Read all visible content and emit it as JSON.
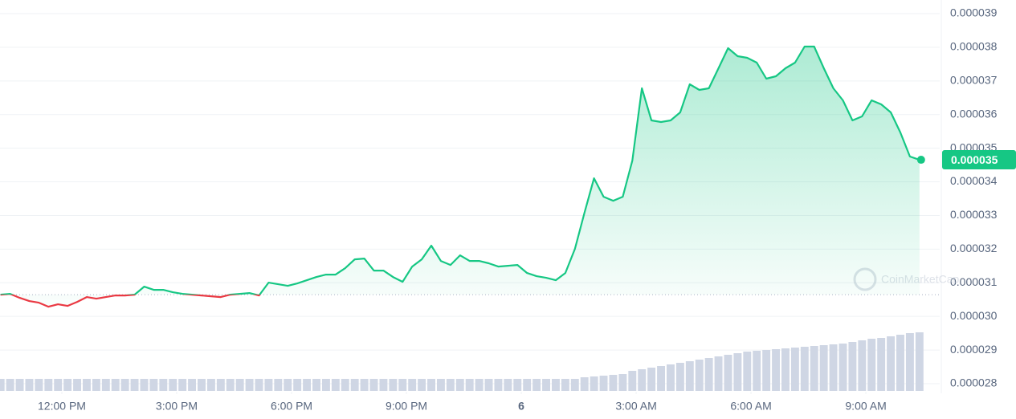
{
  "chart_data": {
    "type": "line",
    "x": [
      10.4,
      10.65,
      10.9,
      11.15,
      11.4,
      11.65,
      11.9,
      12.15,
      12.4,
      12.65,
      12.9,
      13.15,
      13.4,
      13.65,
      13.9,
      14.15,
      14.4,
      14.65,
      14.9,
      15.15,
      15.4,
      15.65,
      15.9,
      16.15,
      16.4,
      16.65,
      16.9,
      17.15,
      17.4,
      17.65,
      17.9,
      18.15,
      18.4,
      18.65,
      18.9,
      19.15,
      19.4,
      19.65,
      19.9,
      20.15,
      20.4,
      20.65,
      20.9,
      21.15,
      21.4,
      21.65,
      21.9,
      22.15,
      22.4,
      22.65,
      22.9,
      23.15,
      23.4,
      23.65,
      23.9,
      24.15,
      24.4,
      24.65,
      24.9,
      25.15,
      25.4,
      25.65,
      25.9,
      26.15,
      26.4,
      26.65,
      26.9,
      27.15,
      27.4,
      27.65,
      27.9,
      28.15,
      28.4,
      28.65,
      28.9,
      29.15,
      29.4,
      29.65,
      29.9,
      30.15,
      30.4,
      30.65,
      30.9,
      31.15,
      31.4,
      31.65,
      31.9,
      32.15,
      32.4,
      32.65,
      32.9,
      33.15,
      33.4,
      33.65,
      33.9,
      34.15,
      34.4
    ],
    "values": [
      3.0647e-05,
      3.0671e-05,
      3.0551e-05,
      3.0456e-05,
      3.0408e-05,
      3.0289e-05,
      3.036e-05,
      3.0313e-05,
      3.0432e-05,
      3.0575e-05,
      3.0527e-05,
      3.0575e-05,
      3.0623e-05,
      3.0623e-05,
      3.0647e-05,
      3.0885e-05,
      3.079e-05,
      3.079e-05,
      3.0718e-05,
      3.0671e-05,
      3.0647e-05,
      3.0623e-05,
      3.0599e-05,
      3.0575e-05,
      3.0647e-05,
      3.0671e-05,
      3.0695e-05,
      3.0623e-05,
      3.1005e-05,
      3.0957e-05,
      3.0909e-05,
      3.0981e-05,
      3.1076e-05,
      3.1172e-05,
      3.1243e-05,
      3.1243e-05,
      3.1434e-05,
      3.1697e-05,
      3.1721e-05,
      3.1363e-05,
      3.1363e-05,
      3.1172e-05,
      3.1029e-05,
      3.1482e-05,
      3.1697e-05,
      3.2103e-05,
      3.1649e-05,
      3.153e-05,
      3.1816e-05,
      3.1649e-05,
      3.1649e-05,
      3.1578e-05,
      3.1482e-05,
      3.1506e-05,
      3.153e-05,
      3.1291e-05,
      3.1196e-05,
      3.1148e-05,
      3.1076e-05,
      3.1291e-05,
      3.2007e-05,
      3.3081e-05,
      3.4107e-05,
      3.3558e-05,
      3.3439e-05,
      3.3558e-05,
      3.4632e-05,
      3.678e-05,
      3.5826e-05,
      3.5778e-05,
      3.5826e-05,
      3.6064e-05,
      3.69e-05,
      3.6733e-05,
      3.678e-05,
      3.7377e-05,
      3.7974e-05,
      3.7735e-05,
      3.7687e-05,
      3.7544e-05,
      3.7067e-05,
      3.7138e-05,
      3.7377e-05,
      3.7544e-05,
      3.8021e-05,
      3.8021e-05,
      3.7377e-05,
      3.678e-05,
      3.6422e-05,
      3.5826e-05,
      3.5945e-05,
      3.6422e-05,
      3.6303e-05,
      3.6064e-05,
      3.5468e-05,
      3.4752e-05,
      3.4656e-05
    ],
    "volume": [
      15,
      15,
      15,
      15,
      15,
      15,
      15,
      15,
      15,
      15,
      15,
      15,
      15,
      15,
      15,
      15,
      15,
      15,
      15,
      15,
      15,
      15,
      15,
      15,
      15,
      15,
      15,
      15,
      15,
      15,
      15,
      15,
      15,
      15,
      15,
      15,
      15,
      15,
      15,
      15,
      15,
      15,
      15,
      15,
      15,
      15,
      15,
      15,
      15,
      15,
      15,
      15,
      15,
      15,
      15,
      15,
      15,
      15,
      15,
      15,
      15,
      17,
      18,
      19,
      20,
      21,
      25,
      27,
      29,
      31,
      33,
      35,
      37,
      39,
      41,
      43,
      45,
      47,
      49,
      50,
      51,
      52,
      53,
      54,
      55,
      56,
      57,
      58,
      59,
      61,
      63,
      65,
      66,
      68,
      70,
      72,
      73
    ],
    "up_color": "#16c784",
    "down_color": "#ea3943",
    "volume_color": "#cfd6e4",
    "current_price_label": "0.000035",
    "watermark": "CoinMarketCap",
    "xlim": [
      10.385,
      34.928
    ],
    "xticks": [
      {
        "value": 12,
        "label": "12:00 PM"
      },
      {
        "value": 15,
        "label": "3:00 PM"
      },
      {
        "value": 18,
        "label": "6:00 PM"
      },
      {
        "value": 21,
        "label": "9:00 PM"
      },
      {
        "value": 24,
        "label": "6"
      },
      {
        "value": 27,
        "label": "3:00 AM"
      },
      {
        "value": 30,
        "label": "6:00 AM"
      },
      {
        "value": 33,
        "label": "9:00 AM"
      }
    ],
    "ylim": [
      2.8e-05,
      3.9e-05
    ],
    "yticks": [
      3.9e-05,
      3.8e-05,
      3.7e-05,
      3.6e-05,
      3.5e-05,
      3.4e-05,
      3.3e-05,
      3.2e-05,
      3.1e-05,
      {
        "value": 3e-05,
        "label": "0.000030"
      },
      2.9e-05,
      2.8e-05
    ],
    "grid": true
  }
}
